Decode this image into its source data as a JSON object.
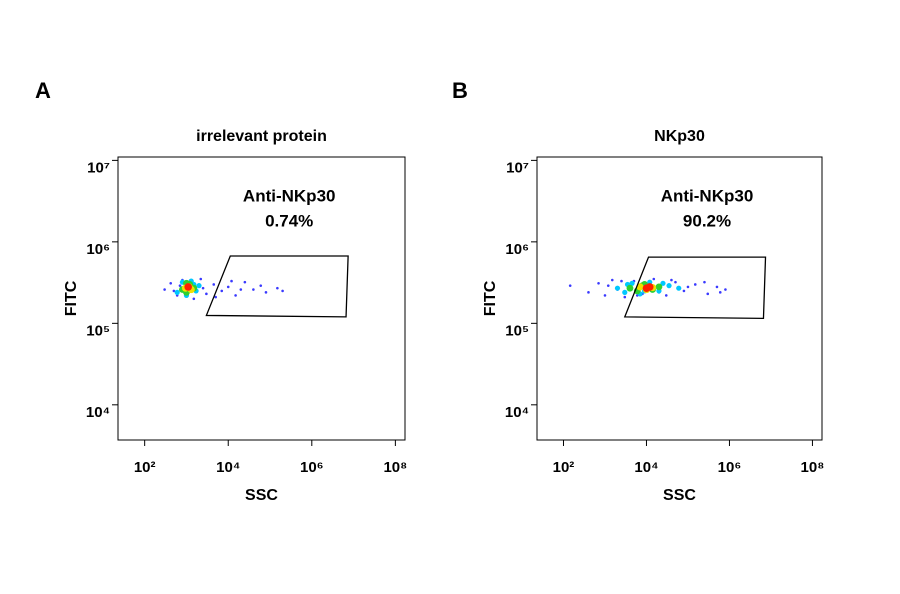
{
  "chart_data": [
    {
      "type": "density-scatter",
      "panel": "A",
      "title": "irrelevant protein",
      "xlabel": "SSC",
      "ylabel": "FITC",
      "xscale": "log",
      "yscale": "log",
      "xlim": [
        23,
        170000000
      ],
      "ylim": [
        3700,
        11000000
      ],
      "xticks": [
        {
          "value": 100,
          "label": "10²"
        },
        {
          "value": 10000,
          "label": "10⁴"
        },
        {
          "value": 1000000,
          "label": "10⁶"
        },
        {
          "value": 100000000,
          "label": "10⁸"
        }
      ],
      "yticks": [
        {
          "value": 10000,
          "label": "10⁴"
        },
        {
          "value": 100000,
          "label": "10⁵"
        },
        {
          "value": 1000000,
          "label": "10⁶"
        },
        {
          "value": 10000000,
          "label": "10⁷"
        }
      ],
      "gate": {
        "name": "Anti-NKp30",
        "value": 0.74,
        "value_label": "0.74%",
        "x": [
          11200,
          7400000,
          6600000,
          3000
        ],
        "y": [
          670000,
          670000,
          120000,
          125000
        ]
      },
      "series": [
        {
          "color": "#3a3aff",
          "x": [
            300,
            420,
            600,
            800,
            1500,
            2200,
            3000,
            4500,
            7000,
            10000,
            15000,
            25000,
            40000,
            80000,
            150000,
            500,
            700,
            2500,
            5000,
            12000,
            20000,
            60000,
            200000
          ],
          "y": [
            260000,
            310000,
            220000,
            340000,
            200000,
            350000,
            230000,
            300000,
            250000,
            280000,
            220000,
            320000,
            260000,
            240000,
            270000,
            250000,
            290000,
            270000,
            210000,
            330000,
            260000,
            290000,
            250000
          ]
        },
        {
          "color": "#00c8ff",
          "x": [
            600,
            800,
            1000,
            1300,
            1700,
            2000,
            900,
            1500
          ],
          "y": [
            240000,
            320000,
            220000,
            330000,
            250000,
            290000,
            270000,
            300000
          ]
        },
        {
          "color": "#30d030",
          "x": [
            800,
            1000,
            1200,
            1500,
            1000
          ],
          "y": [
            260000,
            240000,
            300000,
            270000,
            310000
          ]
        },
        {
          "color": "#f0e000",
          "x": [
            950,
            1150,
            1300
          ],
          "y": [
            270000,
            280000,
            260000
          ]
        },
        {
          "color": "#ff2000",
          "x": [
            1100
          ],
          "y": [
            280000
          ]
        }
      ]
    },
    {
      "type": "density-scatter",
      "panel": "B",
      "title": "NKp30",
      "xlabel": "SSC",
      "ylabel": "FITC",
      "xscale": "log",
      "yscale": "log",
      "xlim": [
        23,
        170000000
      ],
      "ylim": [
        3700,
        11000000
      ],
      "xticks": [
        {
          "value": 100,
          "label": "10²"
        },
        {
          "value": 10000,
          "label": "10⁴"
        },
        {
          "value": 1000000,
          "label": "10⁶"
        },
        {
          "value": 100000000,
          "label": "10⁸"
        }
      ],
      "yticks": [
        {
          "value": 10000,
          "label": "10⁴"
        },
        {
          "value": 100000,
          "label": "10⁵"
        },
        {
          "value": 1000000,
          "label": "10⁶"
        },
        {
          "value": 10000000,
          "label": "10⁷"
        }
      ],
      "gate": {
        "name": "Anti-NKp30",
        "value": 90.2,
        "value_label": "90.2%",
        "x": [
          11200,
          7400000,
          6600000,
          3000
        ],
        "y": [
          650000,
          650000,
          115000,
          120000
        ]
      },
      "series": [
        {
          "color": "#3a3aff",
          "x": [
            145,
            400,
            700,
            1000,
            1500,
            2000,
            3000,
            5000,
            8000,
            15000,
            30000,
            50000,
            80000,
            150000,
            300000,
            500000,
            800000,
            1200,
            2500,
            6000,
            20000,
            40000,
            100000,
            250000,
            600000
          ],
          "y": [
            290000,
            240000,
            310000,
            220000,
            340000,
            260000,
            210000,
            330000,
            230000,
            350000,
            220000,
            320000,
            250000,
            300000,
            230000,
            280000,
            260000,
            290000,
            330000,
            220000,
            240000,
            340000,
            280000,
            320000,
            240000
          ]
        },
        {
          "color": "#00c8ff",
          "x": [
            2000,
            3000,
            4500,
            7000,
            12000,
            20000,
            35000,
            60000,
            3500,
            9000,
            25000
          ],
          "y": [
            270000,
            240000,
            310000,
            230000,
            320000,
            250000,
            290000,
            270000,
            300000,
            250000,
            310000
          ]
        },
        {
          "color": "#30d030",
          "x": [
            4000,
            6000,
            9000,
            14000,
            20000,
            8000
          ],
          "y": [
            270000,
            250000,
            300000,
            260000,
            280000,
            290000
          ]
        },
        {
          "color": "#f0e000",
          "x": [
            7000,
            10000,
            14000
          ],
          "y": [
            280000,
            260000,
            275000
          ]
        },
        {
          "color": "#ff2000",
          "x": [
            10000,
            12000
          ],
          "y": [
            270000,
            280000
          ]
        }
      ]
    }
  ]
}
